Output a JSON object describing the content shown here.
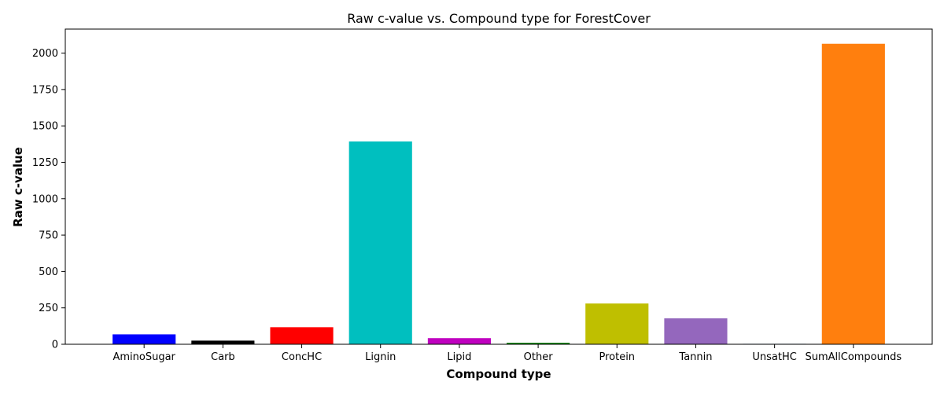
{
  "chart_data": {
    "type": "bar",
    "title": "Raw c-value vs. Compound type for ForestCover",
    "xlabel": "Compound type",
    "ylabel": "Raw c-value",
    "ylim": [
      0,
      2165
    ],
    "yticks": [
      0,
      250,
      500,
      750,
      1000,
      1250,
      1500,
      1750,
      2000
    ],
    "ytick_labels": [
      "0",
      "250",
      "500",
      "750",
      "1000",
      "1250",
      "1500",
      "1750",
      "2000"
    ],
    "categories": [
      "AminoSugar",
      "Carb",
      "ConcHC",
      "Lignin",
      "Lipid",
      "Other",
      "Protein",
      "Tannin",
      "UnsatHC",
      "SumAllCompounds"
    ],
    "values": [
      68,
      25,
      117,
      1393,
      42,
      10,
      280,
      178,
      3,
      2064
    ],
    "colors": [
      "#0000ff",
      "#000000",
      "#ff0000",
      "#00bfbf",
      "#bf00bf",
      "#008000",
      "#bfbf00",
      "#9467bd",
      "#1f77b4",
      "#ff7f0e"
    ],
    "grid": false,
    "legend": "none"
  }
}
